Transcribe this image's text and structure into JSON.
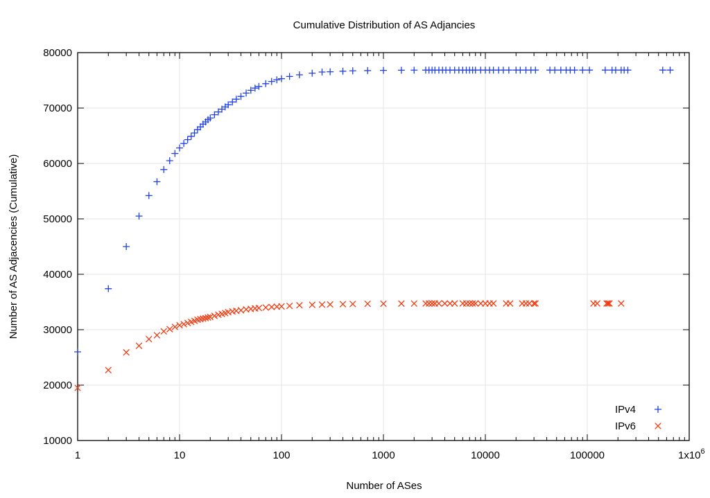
{
  "chart_data": {
    "type": "scatter",
    "title": "Cumulative Distribution of AS Adjancies",
    "xlabel": "Number of ASes",
    "ylabel": "Number of AS Adjacencies (Cumulative)",
    "x_scale": "log",
    "xlim": [
      1,
      1000000
    ],
    "ylim": [
      10000,
      80000
    ],
    "grid": true,
    "legend_position": "bottom-right",
    "x_tick_labels": [
      "1",
      "10",
      "100",
      "1000",
      "10000",
      "100000",
      "1x10^6"
    ],
    "y_tick_labels": [
      "10000",
      "20000",
      "30000",
      "40000",
      "50000",
      "60000",
      "70000",
      "80000"
    ],
    "series": [
      {
        "name": "IPv4",
        "marker": "plus",
        "color": "#1f3fe6",
        "x": [
          1,
          2,
          3,
          4,
          5,
          6,
          7,
          8,
          9,
          10,
          11,
          12,
          13,
          14,
          15,
          16,
          17,
          18,
          19,
          20,
          22,
          24,
          26,
          28,
          30,
          33,
          36,
          40,
          45,
          50,
          55,
          60,
          70,
          80,
          90,
          100,
          120,
          150,
          200,
          250,
          300,
          400,
          500,
          700,
          1000,
          1500,
          2000,
          2600,
          2800,
          3000,
          3200,
          3500,
          3800,
          4100,
          4500,
          5000,
          5500,
          6000,
          6500,
          7000,
          7500,
          8000,
          9000,
          10000,
          11000,
          12000,
          13500,
          15000,
          17000,
          20000,
          22000,
          25000,
          28000,
          31000,
          43000,
          48000,
          55000,
          62000,
          68000,
          75000,
          90000,
          105000,
          150000,
          175000,
          190000,
          215000,
          230000,
          250000,
          550000,
          650000
        ],
        "y": [
          26000,
          37400,
          45000,
          50500,
          54200,
          56700,
          58900,
          60500,
          61800,
          62800,
          63600,
          64300,
          64900,
          65500,
          66100,
          66600,
          67100,
          67500,
          67900,
          68200,
          68800,
          69300,
          69800,
          70200,
          70600,
          71100,
          71600,
          72100,
          72700,
          73200,
          73600,
          73900,
          74400,
          74800,
          75100,
          75300,
          75700,
          76000,
          76300,
          76500,
          76550,
          76650,
          76720,
          76760,
          76800,
          76830,
          76840,
          76850,
          76850,
          76850,
          76850,
          76850,
          76850,
          76850,
          76850,
          76850,
          76850,
          76850,
          76850,
          76850,
          76850,
          76850,
          76850,
          76850,
          76850,
          76850,
          76850,
          76850,
          76850,
          76850,
          76850,
          76850,
          76850,
          76850,
          76850,
          76850,
          76850,
          76850,
          76850,
          76850,
          76850,
          76850,
          76850,
          76850,
          76850,
          76850,
          76850,
          76850,
          76850,
          76850
        ]
      },
      {
        "name": "IPv6",
        "marker": "cross",
        "color": "#f23a0f",
        "x": [
          1,
          2,
          3,
          4,
          5,
          6,
          7,
          8,
          9,
          10,
          11,
          12,
          13,
          14,
          15,
          16,
          17,
          18,
          19,
          20,
          22,
          24,
          26,
          28,
          30,
          33,
          36,
          40,
          45,
          50,
          55,
          60,
          70,
          80,
          90,
          100,
          120,
          150,
          200,
          250,
          300,
          400,
          500,
          700,
          1000,
          1500,
          2000,
          2600,
          2800,
          3000,
          3200,
          3500,
          4000,
          4500,
          5000,
          6000,
          6500,
          7000,
          7500,
          8000,
          9000,
          10000,
          11000,
          12000,
          16000,
          17500,
          23000,
          25000,
          27000,
          30000,
          31000,
          115000,
          125000,
          155000,
          160000,
          165000,
          215000
        ],
        "y": [
          19500,
          22700,
          25900,
          27100,
          28300,
          29000,
          29700,
          30100,
          30500,
          30800,
          31000,
          31200,
          31400,
          31600,
          31800,
          31900,
          32000,
          32100,
          32200,
          32300,
          32500,
          32700,
          32850,
          33000,
          33150,
          33300,
          33400,
          33500,
          33650,
          33750,
          33850,
          33900,
          34000,
          34100,
          34150,
          34200,
          34300,
          34400,
          34480,
          34530,
          34560,
          34610,
          34640,
          34670,
          34690,
          34710,
          34720,
          34730,
          34730,
          34730,
          34730,
          34730,
          34730,
          34730,
          34730,
          34730,
          34730,
          34730,
          34730,
          34730,
          34730,
          34730,
          34730,
          34730,
          34730,
          34730,
          34730,
          34730,
          34730,
          34730,
          34730,
          34730,
          34730,
          34730,
          34730,
          34730,
          34730
        ]
      }
    ]
  }
}
